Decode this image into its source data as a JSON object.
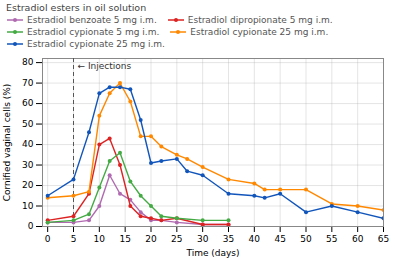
{
  "chart_data": {
    "type": "line",
    "title": "Estradiol esters in oil solution",
    "xlabel": "Time (days)",
    "ylabel": "Cornified vaginal cells (%)",
    "xlim": [
      -1,
      65
    ],
    "ylim": [
      0,
      82
    ],
    "xticks": [
      0,
      5,
      10,
      15,
      20,
      25,
      30,
      35,
      40,
      45,
      50,
      55,
      60,
      65
    ],
    "yticks": [
      0,
      10,
      20,
      30,
      40,
      50,
      60,
      70,
      80
    ],
    "grid": true,
    "marker": "circle",
    "annotations": [
      {
        "x": 5,
        "text": "← Injections",
        "line_style": "dashed"
      }
    ],
    "series": [
      {
        "name": "Estradiol benzoate 5 mg i.m.",
        "color": "#b06ab0",
        "x": [
          0,
          5,
          8,
          10,
          12,
          14,
          16,
          18,
          20,
          22,
          25,
          30,
          35
        ],
        "values": [
          2,
          2,
          3,
          10,
          25,
          16,
          13,
          7,
          3,
          3,
          2,
          1,
          1
        ]
      },
      {
        "name": "Estradiol dipropionate 5 mg i.m.",
        "color": "#dd2222",
        "x": [
          0,
          5,
          8,
          10,
          12,
          14,
          16,
          18,
          20,
          22,
          25,
          30,
          35
        ],
        "values": [
          3,
          5,
          16,
          40,
          43,
          30,
          10,
          5,
          4,
          3,
          4,
          1,
          1
        ]
      },
      {
        "name": "Estradiol cypionate 5 mg i.m.",
        "color": "#44aa44",
        "x": [
          0,
          5,
          8,
          10,
          12,
          14,
          16,
          18,
          20,
          22,
          25,
          30,
          35
        ],
        "values": [
          2,
          3,
          6,
          19,
          32,
          36,
          22,
          15,
          10,
          5,
          4,
          3,
          3
        ]
      },
      {
        "name": "Estradiol cypionate 25 mg i.m.",
        "color": "#ff8800",
        "x": [
          0,
          5,
          8,
          10,
          12,
          14,
          16,
          18,
          20,
          22,
          25,
          27,
          30,
          35,
          40,
          42,
          45,
          50,
          55,
          60,
          65
        ],
        "values": [
          14,
          15,
          17,
          54,
          65,
          70,
          61,
          44,
          44,
          39,
          35,
          33,
          29,
          23,
          21,
          18,
          18,
          18,
          11,
          10,
          8
        ]
      },
      {
        "name": "Estradiol cypionate 25 mg i.m.",
        "color": "#1155bb",
        "x": [
          0,
          5,
          8,
          10,
          12,
          14,
          16,
          18,
          20,
          22,
          25,
          27,
          30,
          35,
          40,
          42,
          45,
          50,
          55,
          60,
          65
        ],
        "values": [
          15,
          23,
          46,
          65,
          68,
          68,
          67,
          52,
          31,
          32,
          33,
          27,
          25,
          16,
          15,
          14,
          16,
          7,
          10,
          7,
          4
        ]
      }
    ]
  }
}
